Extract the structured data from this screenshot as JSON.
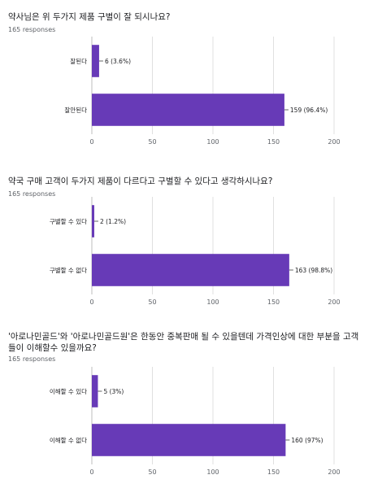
{
  "colors": {
    "bar": "#673ab7",
    "grid": "#e0e0e0",
    "axis": "#bdbdbd",
    "text": "#202124",
    "muted": "#5f6368"
  },
  "questions": [
    {
      "title": "약사님은 위 두가지 제품 구별이 잘 되시나요?",
      "responses": "165 responses"
    },
    {
      "title": "약국 구매 고객이 두가지 제품이 다르다고 구별할 수 있다고 생각하시나요?",
      "responses": "165 responses"
    },
    {
      "title": "'아로나민골드'와 '아로나민골드원'은 한동안 중복판매 될 수 있을텐데 가격인상에 대한 부분을 고객들이 이해할수 있을까요?",
      "responses": "165 responses"
    }
  ],
  "chart_data": [
    {
      "type": "bar",
      "orientation": "horizontal",
      "categories": [
        "잘된다",
        "잘안된다"
      ],
      "values": [
        6,
        159
      ],
      "labels": [
        "6 (3.6%)",
        "159 (96.4%)"
      ],
      "xlim": [
        0,
        200
      ],
      "xticks": [
        0,
        50,
        100,
        150,
        200
      ],
      "grid": true
    },
    {
      "type": "bar",
      "orientation": "horizontal",
      "categories": [
        "구별할 수 있다",
        "구별할 수 없다"
      ],
      "values": [
        2,
        163
      ],
      "labels": [
        "2 (1.2%)",
        "163 (98.8%)"
      ],
      "xlim": [
        0,
        200
      ],
      "xticks": [
        0,
        50,
        100,
        150,
        200
      ],
      "grid": true
    },
    {
      "type": "bar",
      "orientation": "horizontal",
      "categories": [
        "이해할 수 있다",
        "이해할 수 없다"
      ],
      "values": [
        5,
        160
      ],
      "labels": [
        "5 (3%)",
        "160 (97%)"
      ],
      "xlim": [
        0,
        200
      ],
      "xticks": [
        0,
        50,
        100,
        150,
        200
      ],
      "grid": true
    }
  ]
}
